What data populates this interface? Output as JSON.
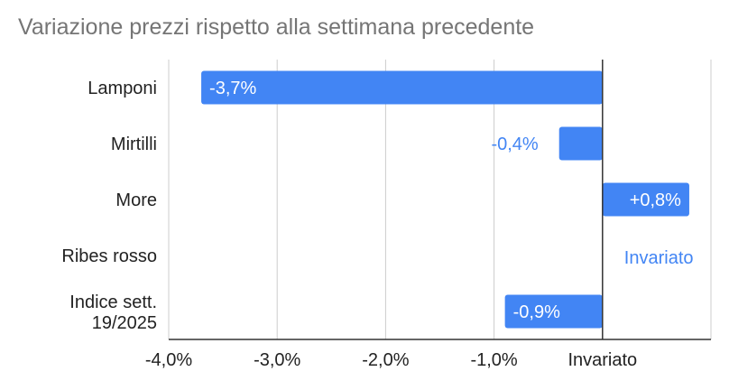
{
  "chart_data": {
    "type": "bar",
    "orientation": "horizontal",
    "title": "Variazione prezzi rispetto alla settimana precedente",
    "categories": [
      "Lamponi",
      "Mirtilli",
      "More",
      "Ribes rosso",
      "Indice sett. 19/2025"
    ],
    "values": [
      -3.7,
      -0.4,
      0.8,
      0.0,
      -0.9
    ],
    "data_labels": [
      "-3,7%",
      "-0,4%",
      "+0,8%",
      "Invariato",
      "-0,9%"
    ],
    "xlim": [
      -4.0,
      1.0
    ],
    "x_ticks": [
      {
        "value": -4.0,
        "label": "-4,0%"
      },
      {
        "value": -3.0,
        "label": "-3,0%"
      },
      {
        "value": -2.0,
        "label": "-2,0%"
      },
      {
        "value": -1.0,
        "label": "-1,0%"
      },
      {
        "value": 0.0,
        "label": "Invariato"
      }
    ],
    "grid": true,
    "legend": "none",
    "colors": {
      "bar": "#4285f4",
      "label_inside": "#ffffff",
      "label_outside": "#4285f4",
      "grid": "#cccccc",
      "axis": "#333333"
    }
  }
}
